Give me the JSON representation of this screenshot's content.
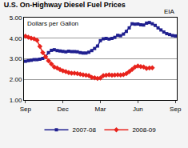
{
  "chart_data": {
    "type": "line",
    "title": "U.S. On-Highway Diesel Fuel Prices",
    "subtitle": "Dollars per Gallon",
    "annotations": [
      "EIA"
    ],
    "categories": [
      "Sep",
      null,
      null,
      null,
      null,
      null,
      null,
      null,
      null,
      null,
      null,
      null,
      null,
      "Dec",
      null,
      null,
      null,
      null,
      null,
      null,
      null,
      null,
      null,
      null,
      null,
      null,
      "Mar",
      null,
      null,
      null,
      null,
      null,
      null,
      null,
      null,
      null,
      null,
      null,
      null,
      "Jun",
      null,
      null,
      null,
      null,
      null,
      null,
      null,
      null,
      null,
      null,
      null,
      null,
      "Sep"
    ],
    "series": [
      {
        "name": "2007-08",
        "color": "#1f1f8f",
        "marker": "square",
        "line_style": "solid",
        "values": [
          2.88,
          2.91,
          2.93,
          2.96,
          2.96,
          2.98,
          3.02,
          3.1,
          3.3,
          3.41,
          3.44,
          3.4,
          3.38,
          3.36,
          3.34,
          3.37,
          3.35,
          3.35,
          3.34,
          3.3,
          3.28,
          3.28,
          3.32,
          3.4,
          3.5,
          3.62,
          3.88,
          3.97,
          3.99,
          3.96,
          3.99,
          4.04,
          4.14,
          4.12,
          4.2,
          4.33,
          4.5,
          4.7,
          4.68,
          4.69,
          4.65,
          4.64,
          4.73,
          4.76,
          4.7,
          4.62,
          4.5,
          4.4,
          4.3,
          4.22,
          4.18,
          4.13,
          4.11
        ]
      },
      {
        "name": "2008-09",
        "color": "#e8231c",
        "marker": "diamond",
        "line_style": "solid",
        "values": [
          4.1,
          4.05,
          4.0,
          3.97,
          3.9,
          3.6,
          3.3,
          3.1,
          2.9,
          2.75,
          2.6,
          2.55,
          2.48,
          2.42,
          2.38,
          2.33,
          2.3,
          2.3,
          2.28,
          2.25,
          2.22,
          2.2,
          2.18,
          2.1,
          2.08,
          2.05,
          2.07,
          2.18,
          2.2,
          2.22,
          2.2,
          2.21,
          2.22,
          2.21,
          2.23,
          2.28,
          2.38,
          2.49,
          2.6,
          2.65,
          2.62,
          2.6,
          2.53,
          2.55,
          2.56,
          null,
          null,
          null,
          null,
          null,
          null,
          null,
          null
        ]
      }
    ],
    "ylim": [
      1,
      5
    ],
    "yticks": [
      {
        "value": 1,
        "label": "1.00"
      },
      {
        "value": 2,
        "label": "2.00"
      },
      {
        "value": 3,
        "label": "3.00"
      },
      {
        "value": 4,
        "label": "4.00"
      },
      {
        "value": 5,
        "label": "5.00"
      }
    ],
    "grid": true,
    "legend": "bottom"
  }
}
